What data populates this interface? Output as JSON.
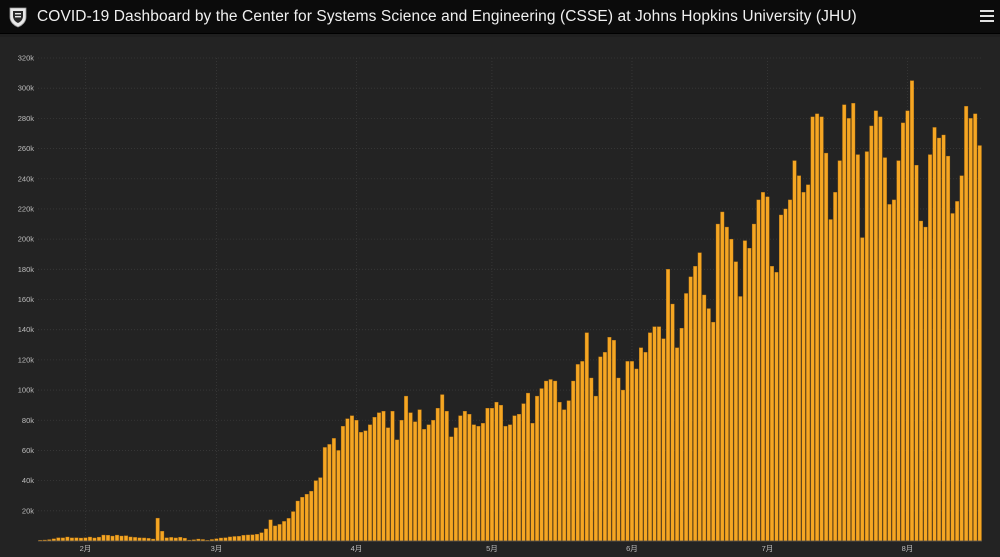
{
  "header": {
    "title": "COVID-19 Dashboard by the Center for Systems Science and Engineering (CSSE) at Johns Hopkins University (JHU)",
    "logo_icon": "jhu-shield-icon",
    "menu_icon": "hamburger-menu-icon"
  },
  "colors": {
    "bar": "#F5A623",
    "bar_stroke": "#B87410",
    "grid": "#3a3a3a",
    "background": "#232323",
    "header_bg": "#0b0b0b"
  },
  "chart_data": {
    "type": "bar",
    "title": "",
    "xlabel": "",
    "ylabel": "",
    "ylim": [
      0,
      320000
    ],
    "yticks": [
      {
        "value": 0,
        "label": ""
      },
      {
        "value": 20000,
        "label": "20k"
      },
      {
        "value": 40000,
        "label": "40k"
      },
      {
        "value": 60000,
        "label": "60k"
      },
      {
        "value": 80000,
        "label": "80k"
      },
      {
        "value": 100000,
        "label": "100k"
      },
      {
        "value": 120000,
        "label": "120k"
      },
      {
        "value": 140000,
        "label": "140k"
      },
      {
        "value": 160000,
        "label": "160k"
      },
      {
        "value": 180000,
        "label": "180k"
      },
      {
        "value": 200000,
        "label": "200k"
      },
      {
        "value": 220000,
        "label": "220k"
      },
      {
        "value": 240000,
        "label": "240k"
      },
      {
        "value": 260000,
        "label": "260k"
      },
      {
        "value": 280000,
        "label": "280k"
      },
      {
        "value": 300000,
        "label": "300k"
      },
      {
        "value": 320000,
        "label": "320k"
      }
    ],
    "xticks": [
      {
        "index": 10,
        "label": "2月"
      },
      {
        "index": 39,
        "label": "3月"
      },
      {
        "index": 70,
        "label": "4月"
      },
      {
        "index": 100,
        "label": "5月"
      },
      {
        "index": 131,
        "label": "6月"
      },
      {
        "index": 161,
        "label": "7月"
      },
      {
        "index": 192,
        "label": "8月"
      }
    ],
    "grid": true,
    "values": [
      555,
      650,
      940,
      1430,
      2120,
      2070,
      2660,
      2060,
      2130,
      1970,
      2110,
      2630,
      2020,
      2560,
      3940,
      3830,
      3280,
      3930,
      3310,
      3470,
      2680,
      2410,
      2090,
      2030,
      1750,
      1320,
      15150,
      6500,
      2100,
      2400,
      2040,
      2500,
      1900,
      600,
      860,
      1300,
      1000,
      500,
      1000,
      1500,
      2000,
      2200,
      2700,
      3000,
      3100,
      3800,
      4000,
      4100,
      4500,
      5500,
      8000,
      14000,
      10000,
      11000,
      13000,
      15000,
      19500,
      26500,
      29000,
      31000,
      33000,
      40000,
      42000,
      62000,
      64000,
      68000,
      60000,
      76000,
      81000,
      83000,
      80000,
      72000,
      73000,
      77000,
      82000,
      85000,
      86000,
      75000,
      86000,
      67000,
      80000,
      96000,
      85000,
      79000,
      87000,
      74000,
      77000,
      80000,
      88000,
      97000,
      86000,
      69000,
      75000,
      83000,
      86000,
      84000,
      77000,
      76000,
      78000,
      88000,
      88000,
      92000,
      90000,
      76000,
      77000,
      83000,
      84000,
      91000,
      98000,
      78000,
      96000,
      101000,
      106000,
      107000,
      106000,
      92000,
      87000,
      93000,
      106000,
      117000,
      119000,
      138000,
      108000,
      96000,
      122000,
      125000,
      135000,
      133000,
      108000,
      100000,
      119000,
      119000,
      114000,
      128000,
      125000,
      138000,
      142000,
      142000,
      134000,
      180000,
      157000,
      128000,
      141000,
      164000,
      175000,
      182000,
      191000,
      163000,
      154000,
      145000,
      210000,
      218000,
      208000,
      200000,
      185000,
      162000,
      199000,
      194000,
      210000,
      226000,
      231000,
      228000,
      182000,
      178000,
      216000,
      220000,
      226000,
      252000,
      242000,
      231000,
      236000,
      281000,
      283000,
      281000,
      257000,
      213000,
      231000,
      252000,
      289000,
      280000,
      290000,
      256000,
      201000,
      258000,
      275000,
      285000,
      281000,
      254000,
      223000,
      226000,
      252000,
      277000,
      285000,
      305000,
      249000,
      212000,
      208000,
      256000,
      274000,
      267000,
      269000,
      255000,
      217000,
      225000,
      242000,
      288000,
      280000,
      283000,
      262000
    ]
  }
}
